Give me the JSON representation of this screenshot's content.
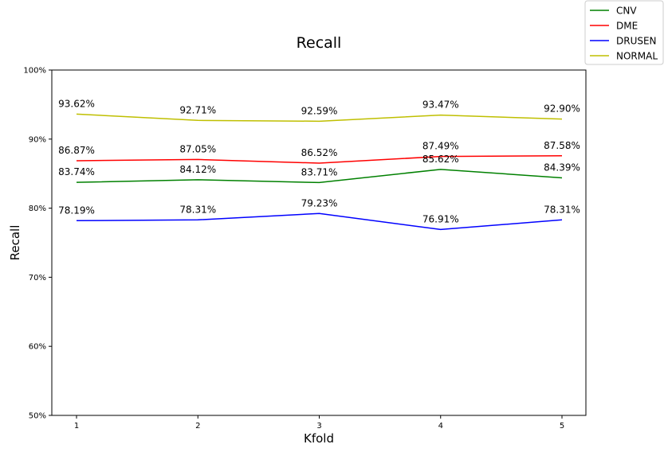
{
  "chart_data": {
    "type": "line",
    "title": "Recall",
    "xlabel": "Kfold",
    "ylabel": "Recall",
    "categories": [
      "1",
      "2",
      "3",
      "4",
      "5"
    ],
    "ylim": [
      50,
      100
    ],
    "yticks": [
      "50%",
      "60%",
      "70%",
      "80%",
      "90%",
      "100%"
    ],
    "grid": false,
    "legend_position": "top-right outside",
    "series": [
      {
        "name": "CNV",
        "color": "#008000",
        "values": [
          83.74,
          84.12,
          83.71,
          85.62,
          84.39
        ],
        "labels": [
          "83.74%",
          "84.12%",
          "83.71%",
          "85.62%",
          "84.39%"
        ]
      },
      {
        "name": "DME",
        "color": "#ff0000",
        "values": [
          86.87,
          87.05,
          86.52,
          87.49,
          87.58
        ],
        "labels": [
          "86.87%",
          "87.05%",
          "86.52%",
          "87.49%",
          "87.58%"
        ]
      },
      {
        "name": "DRUSEN",
        "color": "#0000ff",
        "values": [
          78.19,
          78.31,
          79.23,
          76.91,
          78.31
        ],
        "labels": [
          "78.19%",
          "78.31%",
          "79.23%",
          "76.91%",
          "78.31%"
        ]
      },
      {
        "name": "NORMAL",
        "color": "#bfbf00",
        "values": [
          93.62,
          92.71,
          92.59,
          93.47,
          92.9
        ],
        "labels": [
          "93.62%",
          "92.71%",
          "92.59%",
          "93.47%",
          "92.90%"
        ]
      }
    ]
  }
}
